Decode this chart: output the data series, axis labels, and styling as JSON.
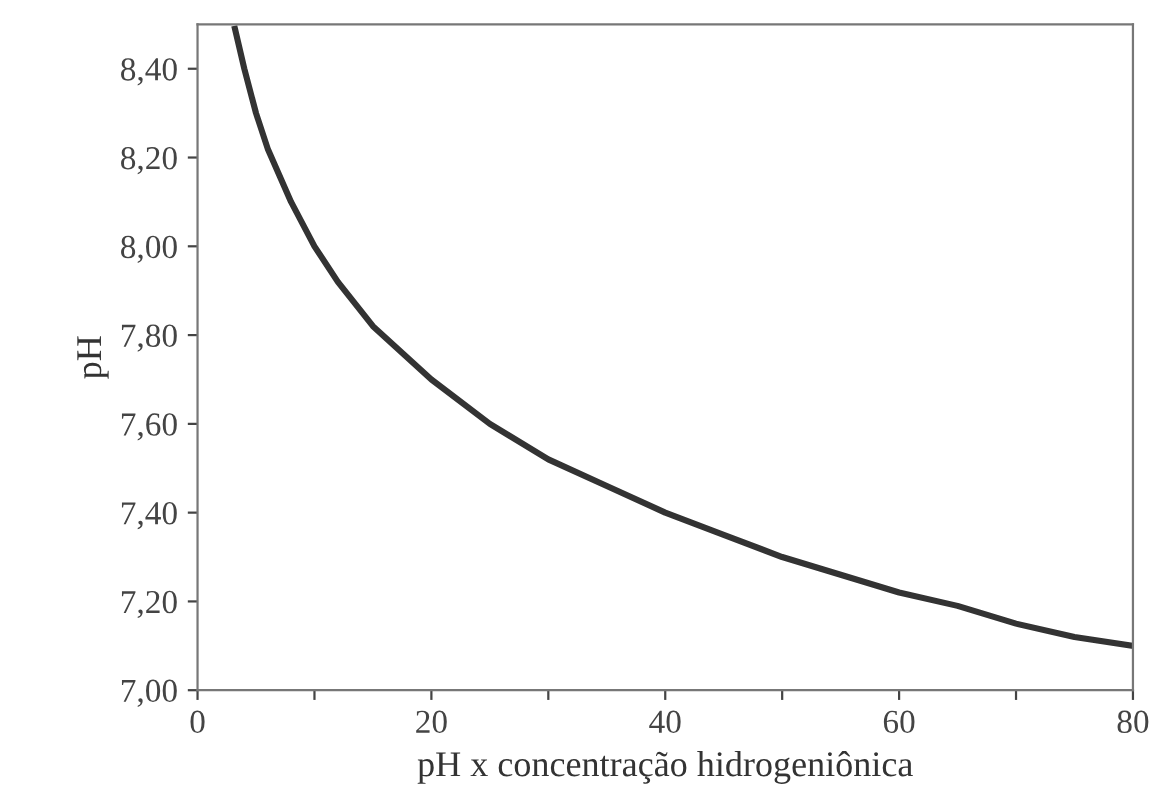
{
  "chart_data": {
    "type": "line",
    "xlabel": "pH x concentração hidrogeniônica",
    "ylabel": "pH",
    "x": [
      3.2,
      4,
      5,
      6,
      8,
      10,
      12,
      15,
      20,
      25,
      30,
      35,
      40,
      45,
      50,
      55,
      60,
      65,
      70,
      75,
      80
    ],
    "series": [
      {
        "color": "#333333",
        "values": [
          8.49,
          8.4,
          8.3,
          8.22,
          8.1,
          8.0,
          7.92,
          7.82,
          7.7,
          7.6,
          7.52,
          7.46,
          7.4,
          7.35,
          7.3,
          7.26,
          7.22,
          7.19,
          7.15,
          7.12,
          7.1
        ]
      }
    ],
    "xlim": [
      0,
      80
    ],
    "ylim": [
      7.0,
      8.5
    ],
    "xticks": [
      0,
      {
        "value": 10,
        "label": null
      },
      20,
      {
        "value": 30,
        "label": null
      },
      40,
      {
        "value": 50,
        "label": null
      },
      60,
      {
        "value": 70,
        "label": null
      },
      80
    ],
    "yticks": [
      {
        "value": 7.0,
        "label": "7,00"
      },
      {
        "value": 7.2,
        "label": "7,20"
      },
      {
        "value": 7.4,
        "label": "7,40"
      },
      {
        "value": 7.6,
        "label": "7,60"
      },
      {
        "value": 7.8,
        "label": "7,80"
      },
      {
        "value": 8.0,
        "label": "8,00"
      },
      {
        "value": 8.2,
        "label": "8,20"
      },
      {
        "value": 8.4,
        "label": "8,40"
      }
    ],
    "grid": false,
    "legend": false,
    "marker": "none",
    "line_style": "solid"
  }
}
